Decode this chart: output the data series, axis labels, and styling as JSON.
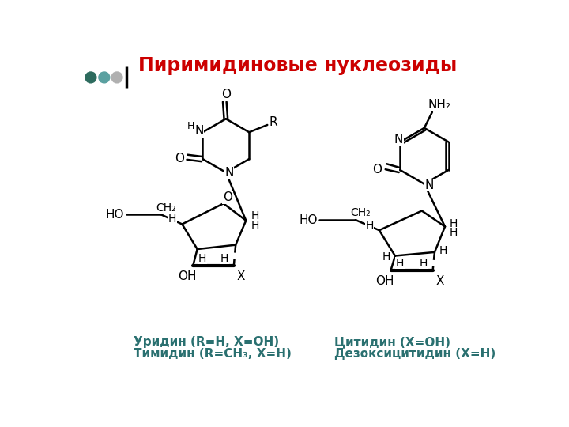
{
  "title": "Пиримидиновые нуклеозиды",
  "title_color": "#cc0000",
  "title_fontsize": 17,
  "bg_color": "#ffffff",
  "bond_color": "#000000",
  "label_color": "#000000",
  "text_color": "#2a7070",
  "left_caption_line1": "Уридин (R=H, X=OH)",
  "left_caption_line2": "Тимидин (R=CH₃, X=H)",
  "right_caption_line1": "Цитидин (X=OH)",
  "right_caption_line2": "Дезоксицитидин (X=H)",
  "dot_colors": [
    "#2d6b5e",
    "#5aa0a0",
    "#b0b0b0"
  ]
}
